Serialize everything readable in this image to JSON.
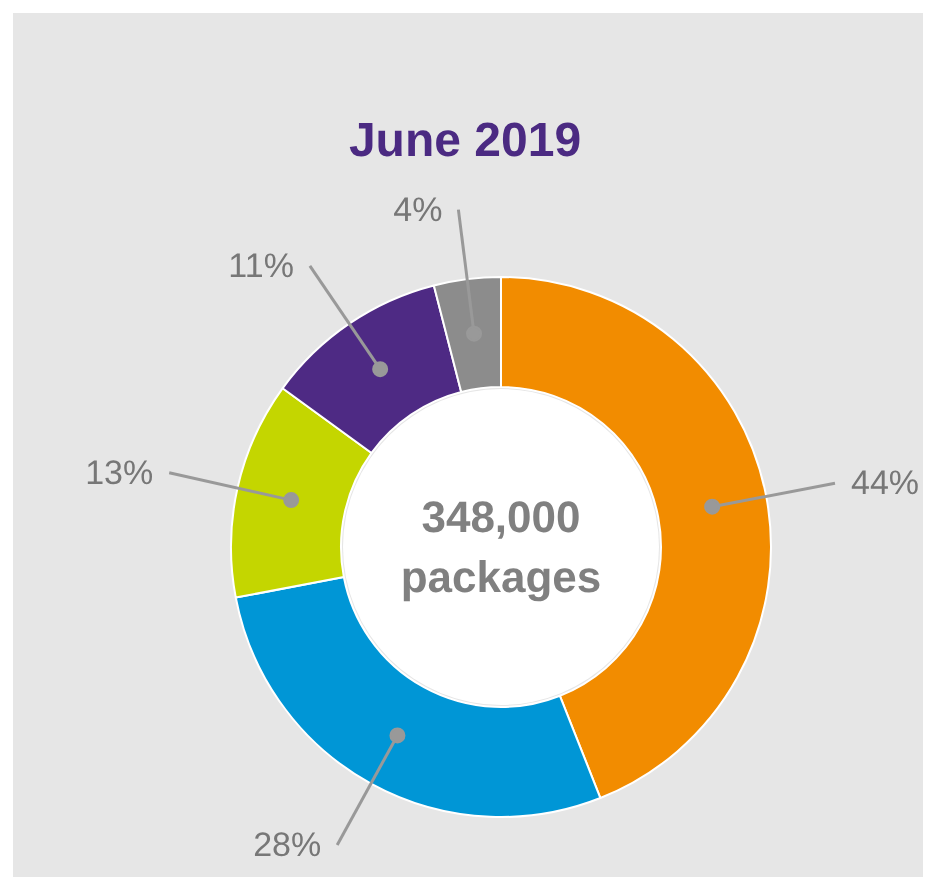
{
  "chart_data": {
    "type": "donut",
    "title": "June 2019",
    "categories": [
      null,
      null,
      null,
      null,
      null
    ],
    "values": [
      44,
      28,
      13,
      11,
      4
    ],
    "colors": [
      "#f28c00",
      "#0096d6",
      "#c4d600",
      "#4e2a84",
      "#8c8c8c"
    ],
    "value_labels": [
      "44%",
      "28%",
      "13%",
      "11%",
      "4%"
    ],
    "annotations": [
      "348,000\npackages"
    ]
  }
}
